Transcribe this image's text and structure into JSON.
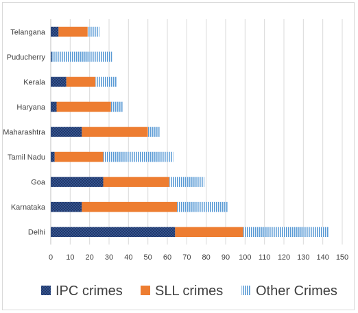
{
  "chart_data": {
    "type": "bar",
    "orientation": "horizontal",
    "stacked": true,
    "title": "",
    "xlabel": "",
    "ylabel": "",
    "categories": [
      "Delhi",
      "Karnataka",
      "Goa",
      "Tamil Nadu",
      "Maharashtra",
      "Haryana",
      "Kerala",
      "Puducherry",
      "Telangana"
    ],
    "series": [
      {
        "name": "IPC crimes",
        "values": [
          64,
          16,
          27,
          2,
          16,
          3,
          8,
          0.5,
          4
        ],
        "color": "#2f4f8f",
        "pattern": "crosshatch"
      },
      {
        "name": "SLL crimes",
        "values": [
          35,
          49,
          34,
          25,
          34,
          28,
          15,
          0,
          15
        ],
        "color": "#ed7d31",
        "pattern": "solid"
      },
      {
        "name": "Other Crimes",
        "values": [
          44,
          26,
          18,
          36,
          6,
          6,
          11,
          31,
          6
        ],
        "color": "#5b9bd5",
        "pattern": "vertical-lines"
      }
    ],
    "xlim": [
      0,
      150
    ],
    "xticks": [
      "0",
      "10",
      "20",
      "30",
      "40",
      "50",
      "60",
      "70",
      "80",
      "90",
      "100",
      "110",
      "120",
      "130",
      "140",
      "150"
    ],
    "grid": "vertical",
    "legend": "bottom"
  }
}
